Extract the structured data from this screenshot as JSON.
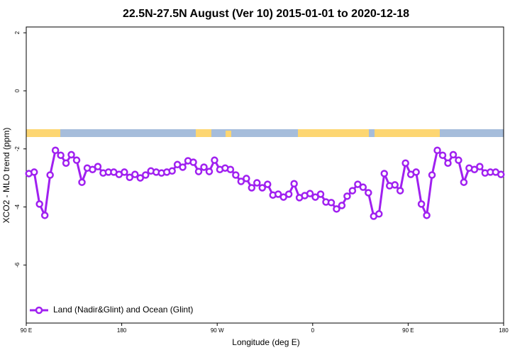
{
  "chart_data": {
    "type": "line",
    "title": "22.5N-27.5N August (Ver 10)   2015-01-01 to 2020-12-18",
    "x_label": "Longitude (deg E)",
    "y_label": "XCO2 - MLO trend (ppm)",
    "xlim": [
      90,
      540
    ],
    "ylim": [
      -8,
      2.2
    ],
    "xticks": [
      {
        "value": 90,
        "label": "90 E"
      },
      {
        "value": 180,
        "label": "180"
      },
      {
        "value": 270,
        "label": "90 W"
      },
      {
        "value": 360,
        "label": "0"
      },
      {
        "value": 450,
        "label": "90 E"
      },
      {
        "value": 540,
        "label": "180"
      }
    ],
    "yticks": [
      2,
      0,
      -2,
      -4,
      -6
    ],
    "legend_position": "bottom-left",
    "x": [
      92.5,
      97.5,
      102.5,
      107.5,
      112.5,
      117.5,
      122.5,
      127.5,
      132.5,
      137.5,
      142.5,
      147.5,
      152.5,
      157.5,
      162.5,
      167.5,
      172.5,
      177.5,
      182.5,
      187.5,
      192.5,
      197.5,
      202.5,
      207.5,
      212.5,
      217.5,
      222.5,
      227.5,
      232.5,
      237.5,
      242.5,
      247.5,
      252.5,
      257.5,
      262.5,
      267.5,
      272.5,
      277.5,
      282.5,
      287.5,
      292.5,
      297.5,
      302.5,
      307.5,
      312.5,
      317.5,
      322.5,
      327.5,
      332.5,
      337.5,
      342.5,
      347.5,
      352.5,
      357.5,
      362.5,
      367.5,
      372.5,
      377.5,
      382.5,
      387.5,
      392.5,
      397.5,
      402.5,
      407.5,
      412.5,
      417.5,
      422.5,
      427.5,
      432.5,
      437.5,
      442.5,
      447.5,
      452.5,
      457.5,
      462.5,
      467.5,
      472.5,
      477.5,
      482.5,
      487.5,
      492.5,
      497.5,
      502.5,
      507.5,
      512.5,
      517.5,
      522.5,
      527.5,
      532.5,
      537.5
    ],
    "series": [
      {
        "name": "Land (Nadir&Glint) and Ocean (Glint)",
        "color": "#a020f0",
        "values": [
          -2.85,
          -2.8,
          -3.9,
          -4.29,
          -2.9,
          -2.05,
          -2.22,
          -2.49,
          -2.2,
          -2.39,
          -3.15,
          -2.66,
          -2.71,
          -2.61,
          -2.83,
          -2.8,
          -2.8,
          -2.88,
          -2.8,
          -2.98,
          -2.88,
          -3.0,
          -2.9,
          -2.76,
          -2.8,
          -2.83,
          -2.8,
          -2.76,
          -2.54,
          -2.63,
          -2.41,
          -2.46,
          -2.78,
          -2.63,
          -2.78,
          -2.39,
          -2.71,
          -2.66,
          -2.71,
          -2.9,
          -3.12,
          -3.02,
          -3.34,
          -3.17,
          -3.34,
          -3.22,
          -3.59,
          -3.56,
          -3.66,
          -3.56,
          -3.2,
          -3.68,
          -3.61,
          -3.54,
          -3.66,
          -3.56,
          -3.83,
          -3.85,
          -4.07,
          -3.95,
          -3.63,
          -3.44,
          -3.22,
          -3.32,
          -3.51,
          -4.32,
          -4.24,
          -2.85,
          -3.27,
          -3.24,
          -3.44,
          -2.49,
          -2.88,
          -2.8,
          -3.9,
          -4.29,
          -2.9,
          -2.05,
          -2.22,
          -2.49,
          -2.2,
          -2.39,
          -3.15,
          -2.66,
          -2.71,
          -2.61,
          -2.83,
          -2.8,
          -2.8,
          -2.88
        ]
      }
    ]
  }
}
